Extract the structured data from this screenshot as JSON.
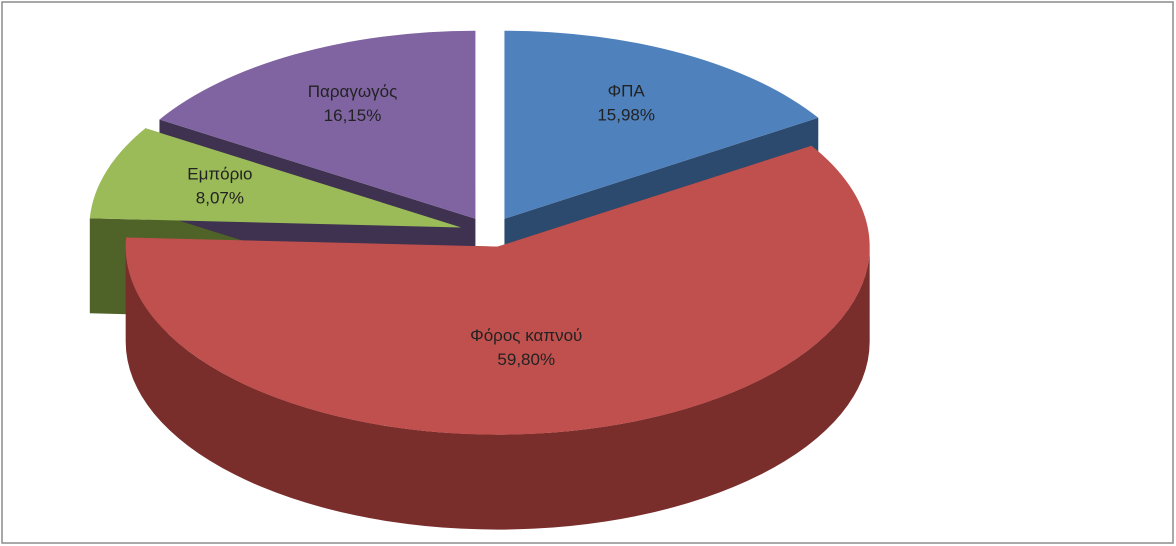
{
  "chart_data": {
    "type": "pie",
    "categories": [
      "ΦΠΑ",
      "Φόρος καπνού",
      "Εμπόριο",
      "Παραγωγός"
    ],
    "values": [
      15.98,
      59.8,
      8.07,
      16.15
    ],
    "value_labels": [
      "15,98%",
      "59,80%",
      "8,07%",
      "16,15%"
    ],
    "colors": [
      "#4f81bd",
      "#c0504d",
      "#9bbb59",
      "#8064a2"
    ],
    "side_colors": [
      "#2c4a6e",
      "#7a2e2c",
      "#4f6228",
      "#3f3150"
    ]
  }
}
